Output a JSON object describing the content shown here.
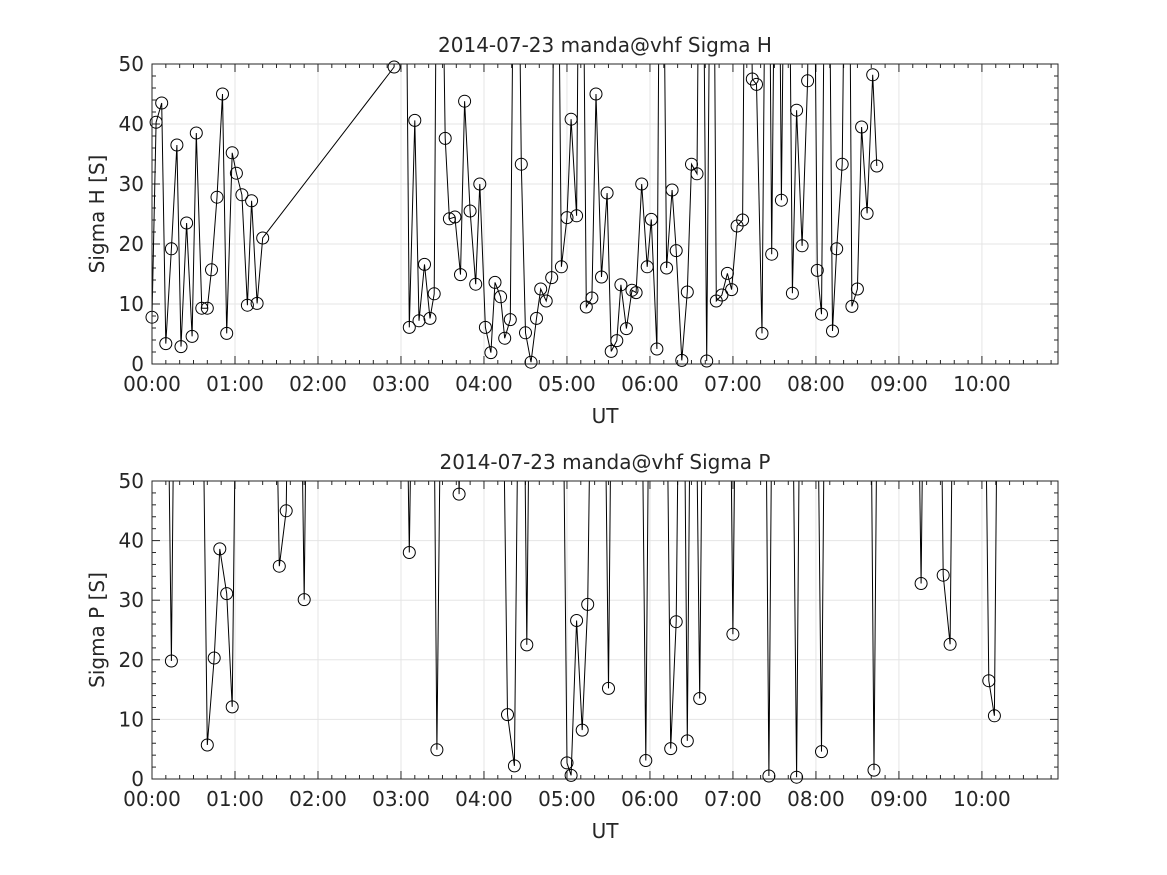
{
  "chart_data": [
    {
      "type": "line",
      "title": "2014-07-23  manda@vhf Sigma H",
      "xlabel": "UT",
      "ylabel": "Sigma H [S]",
      "xlim": [
        "00:00",
        "10:55"
      ],
      "ylim": [
        0,
        50
      ],
      "grid": true,
      "x_ticks": [
        "00:00",
        "01:00",
        "02:00",
        "03:00",
        "04:00",
        "05:00",
        "06:00",
        "07:00",
        "08:00",
        "09:00",
        "10:00"
      ],
      "y_ticks": [
        "0",
        "10",
        "20",
        "30",
        "40",
        "50"
      ],
      "series": [
        {
          "marker": "circle",
          "color": "#000000",
          "points": [
            [
              "00:00",
              7.8
            ],
            [
              "00:03",
              40.3
            ],
            [
              "00:07",
              43.5
            ],
            [
              "00:10",
              3.4
            ],
            [
              "00:14",
              19.2
            ],
            [
              "00:18",
              36.5
            ],
            [
              "00:21",
              2.9
            ],
            [
              "00:25",
              23.5
            ],
            [
              "00:29",
              4.6
            ],
            [
              "00:32",
              38.5
            ],
            [
              "00:36",
              9.3
            ],
            [
              "00:40",
              9.3
            ],
            [
              "00:43",
              15.7
            ],
            [
              "00:47",
              27.8
            ],
            [
              "00:51",
              45.0
            ],
            [
              "00:54",
              5.1
            ],
            [
              "00:58",
              35.2
            ],
            [
              "01:01",
              31.8
            ],
            [
              "01:05",
              28.2
            ],
            [
              "01:09",
              9.8
            ],
            [
              "01:12",
              27.2
            ],
            [
              "01:16",
              10.1
            ],
            [
              "01:20",
              21.0
            ],
            [
              "02:55",
              49.5
            ],
            [
              "02:57",
              null
            ],
            [
              "03:02",
              null
            ],
            [
              "03:06",
              6.1
            ],
            [
              "03:10",
              40.6
            ],
            [
              "03:13",
              7.2
            ],
            [
              "03:17",
              16.6
            ],
            [
              "03:21",
              7.6
            ],
            [
              "03:24",
              11.7
            ],
            [
              "03:27",
              null
            ],
            [
              "03:32",
              37.6
            ],
            [
              "03:35",
              24.2
            ],
            [
              "03:39",
              24.5
            ],
            [
              "03:43",
              14.9
            ],
            [
              "03:46",
              43.8
            ],
            [
              "03:50",
              25.5
            ],
            [
              "03:54",
              13.3
            ],
            [
              "03:57",
              30.0
            ],
            [
              "04:01",
              6.1
            ],
            [
              "04:05",
              1.9
            ],
            [
              "04:08",
              13.6
            ],
            [
              "04:12",
              11.2
            ],
            [
              "04:15",
              4.3
            ],
            [
              "04:19",
              7.4
            ],
            [
              "04:23",
              null
            ],
            [
              "04:27",
              33.3
            ],
            [
              "04:30",
              5.2
            ],
            [
              "04:34",
              0.3
            ],
            [
              "04:38",
              7.6
            ],
            [
              "04:41",
              12.5
            ],
            [
              "04:45",
              10.5
            ],
            [
              "04:49",
              14.4
            ],
            [
              "04:52",
              null
            ],
            [
              "04:56",
              16.2
            ],
            [
              "05:00",
              24.4
            ],
            [
              "05:03",
              40.8
            ],
            [
              "05:07",
              24.7
            ],
            [
              "05:10",
              null
            ],
            [
              "05:14",
              9.5
            ],
            [
              "05:18",
              11.0
            ],
            [
              "05:21",
              45.0
            ],
            [
              "05:25",
              14.5
            ],
            [
              "05:29",
              28.5
            ],
            [
              "05:32",
              2.1
            ],
            [
              "05:36",
              3.9
            ],
            [
              "05:39",
              13.2
            ],
            [
              "05:43",
              5.9
            ],
            [
              "05:47",
              12.3
            ],
            [
              "05:50",
              11.9
            ],
            [
              "05:54",
              30.0
            ],
            [
              "05:58",
              16.2
            ],
            [
              "06:01",
              24.1
            ],
            [
              "06:05",
              2.5
            ],
            [
              "06:08",
              null
            ],
            [
              "06:12",
              16.0
            ],
            [
              "06:16",
              29.0
            ],
            [
              "06:19",
              18.9
            ],
            [
              "06:23",
              0.6
            ],
            [
              "06:27",
              12.0
            ],
            [
              "06:30",
              33.3
            ],
            [
              "06:34",
              31.7
            ],
            [
              "06:37",
              null
            ],
            [
              "06:41",
              0.5
            ],
            [
              "06:45",
              null
            ],
            [
              "06:48",
              10.5
            ],
            [
              "06:52",
              11.5
            ],
            [
              "06:56",
              15.1
            ],
            [
              "06:59",
              12.4
            ],
            [
              "07:03",
              23.0
            ],
            [
              "07:07",
              24.0
            ],
            [
              "07:10",
              null
            ],
            [
              "07:14",
              47.5
            ],
            [
              "07:17",
              46.6
            ],
            [
              "07:21",
              5.1
            ],
            [
              "07:25",
              null
            ],
            [
              "07:28",
              18.3
            ],
            [
              "07:32",
              null
            ],
            [
              "07:35",
              27.3
            ],
            [
              "07:39",
              null
            ],
            [
              "07:43",
              11.8
            ],
            [
              "07:46",
              42.3
            ],
            [
              "07:50",
              19.7
            ],
            [
              "07:54",
              47.2
            ],
            [
              "07:57",
              null
            ],
            [
              "08:01",
              15.6
            ],
            [
              "08:04",
              8.3
            ],
            [
              "08:08",
              null
            ],
            [
              "08:12",
              5.5
            ],
            [
              "08:15",
              19.2
            ],
            [
              "08:19",
              33.3
            ],
            [
              "08:23",
              null
            ],
            [
              "08:26",
              9.6
            ],
            [
              "08:30",
              12.5
            ],
            [
              "08:33",
              39.5
            ],
            [
              "08:37",
              25.1
            ],
            [
              "08:41",
              48.2
            ],
            [
              "08:44",
              33.0
            ]
          ]
        }
      ]
    },
    {
      "type": "line",
      "title": "2014-07-23  manda@vhf Sigma P",
      "xlabel": "UT",
      "ylabel": "Sigma P [S]",
      "xlim": [
        "00:00",
        "10:55"
      ],
      "ylim": [
        0,
        50
      ],
      "grid": true,
      "x_ticks": [
        "00:00",
        "01:00",
        "02:00",
        "03:00",
        "04:00",
        "05:00",
        "06:00",
        "07:00",
        "08:00",
        "09:00",
        "10:00"
      ],
      "y_ticks": [
        "0",
        "10",
        "20",
        "30",
        "40",
        "50"
      ],
      "series": [
        {
          "marker": "circle",
          "color": "#000000",
          "points": [
            [
              "00:09",
              null
            ],
            [
              "00:14",
              19.8
            ],
            [
              "00:18",
              null
            ],
            [
              "00:34",
              null
            ],
            [
              "00:40",
              5.7
            ],
            [
              "00:45",
              20.3
            ],
            [
              "00:49",
              38.6
            ],
            [
              "00:54",
              31.1
            ],
            [
              "00:58",
              12.1
            ],
            [
              "01:03",
              null
            ],
            [
              "01:26",
              null
            ],
            [
              "01:32",
              35.7
            ],
            [
              "01:37",
              45.0
            ],
            [
              "01:41",
              null
            ],
            [
              "01:45",
              null
            ],
            [
              "01:50",
              30.1
            ],
            [
              "01:54",
              null
            ],
            [
              "02:58",
              null
            ],
            [
              "03:01",
              null
            ],
            [
              "03:06",
              38.0
            ],
            [
              "03:11",
              null
            ],
            [
              "03:22",
              null
            ],
            [
              "03:26",
              4.9
            ],
            [
              "03:31",
              null
            ],
            [
              "03:37",
              null
            ],
            [
              "03:42",
              47.8
            ],
            [
              "03:47",
              null
            ],
            [
              "04:11",
              null
            ],
            [
              "04:17",
              10.8
            ],
            [
              "04:22",
              2.2
            ],
            [
              "04:27",
              null
            ],
            [
              "04:31",
              22.5
            ],
            [
              "04:35",
              null
            ],
            [
              "04:55",
              null
            ],
            [
              "05:00",
              2.7
            ],
            [
              "05:03",
              0.6
            ],
            [
              "05:07",
              26.6
            ],
            [
              "05:11",
              8.2
            ],
            [
              "05:15",
              29.3
            ],
            [
              "05:20",
              null
            ],
            [
              "05:25",
              null
            ],
            [
              "05:30",
              15.2
            ],
            [
              "05:34",
              null
            ],
            [
              "05:52",
              null
            ],
            [
              "05:57",
              3.1
            ],
            [
              "06:01",
              null
            ],
            [
              "06:10",
              null
            ],
            [
              "06:15",
              5.1
            ],
            [
              "06:19",
              26.4
            ],
            [
              "06:23",
              null
            ],
            [
              "06:27",
              6.4
            ],
            [
              "06:31",
              null
            ],
            [
              "06:36",
              13.5
            ],
            [
              "06:40",
              null
            ],
            [
              "06:56",
              null
            ],
            [
              "07:00",
              24.3
            ],
            [
              "07:04",
              null
            ],
            [
              "07:22",
              null
            ],
            [
              "07:26",
              0.5
            ],
            [
              "07:30",
              null
            ],
            [
              "07:41",
              null
            ],
            [
              "07:46",
              0.3
            ],
            [
              "07:50",
              null
            ],
            [
              "07:59",
              null
            ],
            [
              "08:04",
              4.6
            ],
            [
              "08:08",
              null
            ],
            [
              "08:38",
              null
            ],
            [
              "08:42",
              1.5
            ],
            [
              "08:46",
              null
            ],
            [
              "09:11",
              null
            ],
            [
              "09:16",
              32.8
            ],
            [
              "09:20",
              null
            ],
            [
              "09:28",
              null
            ],
            [
              "09:32",
              34.2
            ],
            [
              "09:37",
              22.6
            ],
            [
              "09:41",
              null
            ],
            [
              "10:00",
              null
            ],
            [
              "10:05",
              16.5
            ],
            [
              "10:09",
              10.6
            ],
            [
              "10:13",
              null
            ]
          ]
        }
      ]
    }
  ]
}
